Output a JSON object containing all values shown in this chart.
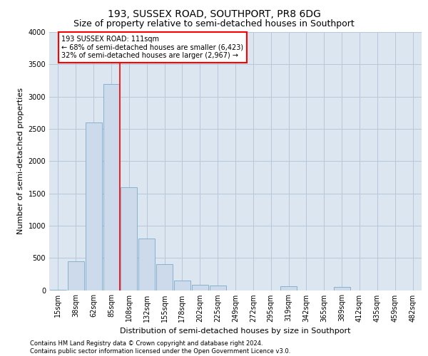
{
  "title_line1": "193, SUSSEX ROAD, SOUTHPORT, PR8 6DG",
  "title_line2": "Size of property relative to semi-detached houses in Southport",
  "xlabel": "Distribution of semi-detached houses by size in Southport",
  "ylabel": "Number of semi-detached properties",
  "footnote": "Contains HM Land Registry data © Crown copyright and database right 2024.\nContains public sector information licensed under the Open Government Licence v3.0.",
  "bar_color": "#ccdaeb",
  "bar_edge_color": "#7aaac8",
  "grid_color": "#b8c8d8",
  "background_color": "#dce6f0",
  "fig_background": "#ffffff",
  "categories": [
    "15sqm",
    "38sqm",
    "62sqm",
    "85sqm",
    "108sqm",
    "132sqm",
    "155sqm",
    "178sqm",
    "202sqm",
    "225sqm",
    "249sqm",
    "272sqm",
    "295sqm",
    "319sqm",
    "342sqm",
    "365sqm",
    "389sqm",
    "412sqm",
    "435sqm",
    "459sqm",
    "482sqm"
  ],
  "values": [
    10,
    450,
    2600,
    3200,
    1600,
    800,
    400,
    150,
    80,
    70,
    0,
    0,
    0,
    60,
    0,
    0,
    50,
    0,
    0,
    0,
    0
  ],
  "annotation_text": "193 SUSSEX ROAD: 111sqm\n← 68% of semi-detached houses are smaller (6,423)\n32% of semi-detached houses are larger (2,967) →",
  "annotation_box_color": "white",
  "annotation_box_edge": "red",
  "vline_color": "red",
  "vline_x": 3.5,
  "ylim": [
    0,
    4000
  ],
  "yticks": [
    0,
    500,
    1000,
    1500,
    2000,
    2500,
    3000,
    3500,
    4000
  ],
  "title1_fontsize": 10,
  "title2_fontsize": 9,
  "ylabel_fontsize": 8,
  "xlabel_fontsize": 8,
  "tick_fontsize": 7,
  "annot_fontsize": 7,
  "footnote_fontsize": 6
}
